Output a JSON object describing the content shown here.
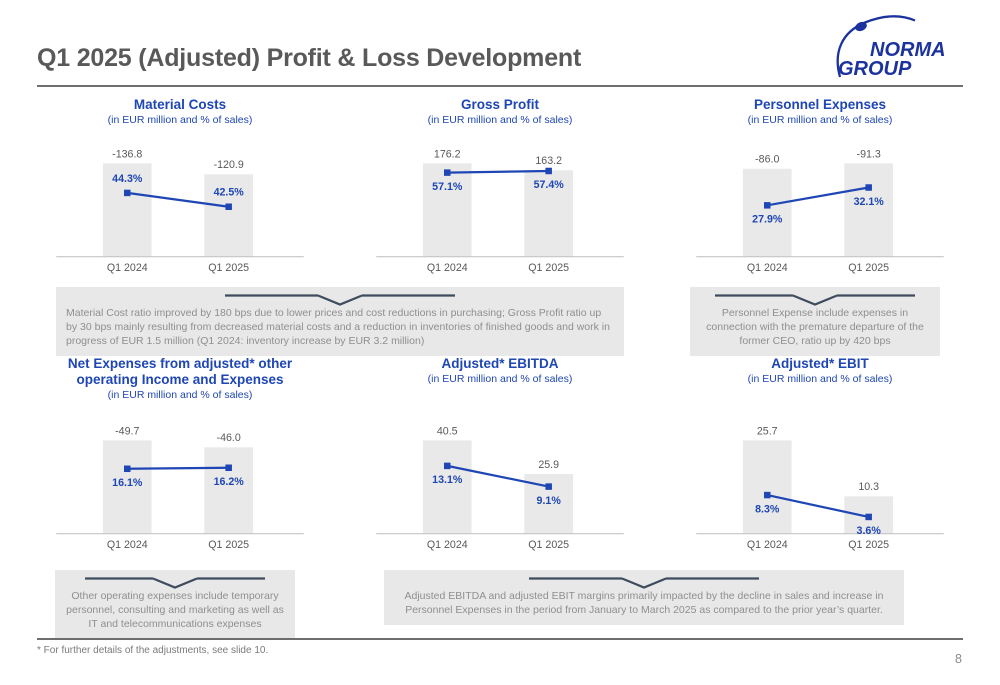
{
  "colors": {
    "brand_blue": "#1c339e",
    "chart_blue": "#1e46b4",
    "title_gray": "#595959",
    "label_gray": "#595959",
    "bar_fill": "#e9e9e9",
    "axis_gray": "#c6c6c6",
    "note_bg": "#e8e8e8",
    "note_text": "#8f8f91",
    "chevron": "#3e4c5e"
  },
  "header": {
    "title": "Q1 2025 (Adjusted) Profit & Loss Development",
    "logo_line1": "NORMA",
    "logo_line2": "GROUP"
  },
  "chart_data": [
    {
      "type": "bar+line",
      "title": "Material Costs",
      "subtitle": "(in EUR million and % of sales)",
      "categories": [
        "Q1 2024",
        "Q1 2025"
      ],
      "bars": {
        "name": "EUR million",
        "values": [
          -136.8,
          -120.9
        ],
        "labels": [
          "-136.8",
          "-120.9"
        ]
      },
      "line": {
        "name": "% of sales",
        "values": [
          44.3,
          42.5
        ],
        "labels": [
          "44.3%",
          "42.5%"
        ],
        "axis_range": [
          36.0,
          49.2
        ],
        "label_pos": "above"
      }
    },
    {
      "type": "bar+line",
      "title": "Gross Profit",
      "subtitle": "(in EUR million and % of sales)",
      "categories": [
        "Q1 2024",
        "Q1 2025"
      ],
      "bars": {
        "name": "EUR million",
        "values": [
          176.2,
          163.2
        ],
        "labels": [
          "176.2",
          "163.2"
        ]
      },
      "line": {
        "name": "% of sales",
        "values": [
          57.1,
          57.4
        ],
        "labels": [
          "57.1%",
          "57.4%"
        ],
        "axis_range": [
          41.6,
          60.3
        ],
        "label_pos": "below"
      }
    },
    {
      "type": "bar+line",
      "title": "Personnel Expenses",
      "subtitle": "(in EUR million and % of sales)",
      "categories": [
        "Q1 2024",
        "Q1 2025"
      ],
      "bars": {
        "name": "EUR million",
        "values": [
          -86.0,
          -91.3
        ],
        "labels": [
          "-86.0",
          "-91.3"
        ]
      },
      "line": {
        "name": "% of sales",
        "values": [
          27.9,
          32.1
        ],
        "labels": [
          "27.9%",
          "32.1%"
        ],
        "axis_range": [
          15.8,
          39.7
        ],
        "label_pos": "below"
      }
    },
    {
      "type": "bar+line",
      "title": "Net Expenses from adjusted* other operating Income and Expenses",
      "subtitle": "(in EUR million and % of sales)",
      "categories": [
        "Q1 2024",
        "Q1 2025"
      ],
      "bars": {
        "name": "EUR million",
        "values": [
          -49.7,
          -46.0
        ],
        "labels": [
          "-49.7",
          "-46.0"
        ]
      },
      "line": {
        "name": "% of sales",
        "values": [
          16.1,
          16.2
        ],
        "labels": [
          "16.1%",
          "16.2%"
        ],
        "axis_range": [
          9.7,
          19.7
        ],
        "label_pos": "below"
      }
    },
    {
      "type": "bar+line",
      "title": "Adjusted* EBITDA",
      "subtitle": "(in EUR million and % of sales)",
      "categories": [
        "Q1 2024",
        "Q1 2025"
      ],
      "bars": {
        "name": "EUR million",
        "values": [
          40.5,
          25.9
        ],
        "labels": [
          "40.5",
          "25.9"
        ]
      },
      "line": {
        "name": "% of sales",
        "values": [
          13.1,
          9.1
        ],
        "labels": [
          "13.1%",
          "9.1%"
        ],
        "axis_range": [
          0,
          19.6
        ],
        "label_pos": "below"
      }
    },
    {
      "type": "bar+line",
      "title": "Adjusted* EBIT",
      "subtitle": "(in EUR million and % of sales)",
      "categories": [
        "Q1 2024",
        "Q1 2025"
      ],
      "bars": {
        "name": "EUR million",
        "values": [
          25.7,
          10.3
        ],
        "labels": [
          "25.7",
          "10.3"
        ]
      },
      "line": {
        "name": "% of sales",
        "values": [
          8.3,
          3.6
        ],
        "labels": [
          "8.3%",
          "3.6%"
        ],
        "axis_range": [
          0,
          21.8
        ],
        "label_pos": "below"
      }
    }
  ],
  "notes": {
    "material_gross": "Material Cost ratio improved by 180 bps due to lower prices and cost reductions in purchasing; Gross Profit ratio up by 30 bps mainly resulting from decreased material costs and a reduction in inventories of finished goods and work in progress of EUR 1.5 million (Q1 2024: inventory increase by EUR 3.2 million)",
    "personnel": "Personnel Expense include expenses in connection with the premature departure of the former CEO, ratio up by 420 bps",
    "other_operating": "Other operating expenses include temporary personnel, consulting and marketing as well as IT and telecommunications expenses",
    "ebitda_ebit": "Adjusted EBITDA and adjusted EBIT margins primarily impacted by the decline in sales and increase in Personnel Expenses in the period from January to March 2025 as compared to the prior year’s quarter."
  },
  "footer": {
    "footnote": "* For further details of the adjustments, see slide 10.",
    "page_number": "8"
  }
}
